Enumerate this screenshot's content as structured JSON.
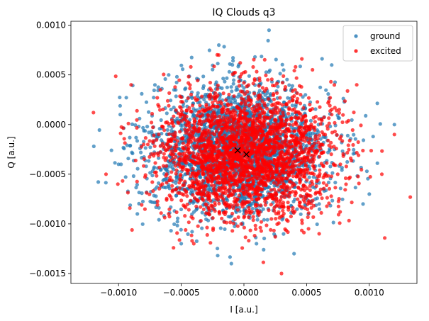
{
  "chart_data": {
    "type": "scatter",
    "title": "IQ Clouds q3",
    "xlabel": "I [a.u.]",
    "ylabel": "Q [a.u.]",
    "xlim": [
      -0.00138,
      0.00138
    ],
    "ylim": [
      -0.0016,
      0.00104
    ],
    "xticks": [
      -0.001,
      -0.0005,
      0.0,
      0.0005,
      0.001
    ],
    "xtick_labels": [
      "−0.0010",
      "−0.0005",
      "0.0000",
      "0.0005",
      "0.0010"
    ],
    "yticks": [
      -0.0015,
      -0.001,
      -0.0005,
      0.0,
      0.0005,
      0.001
    ],
    "ytick_labels": [
      "−0.0015",
      "−0.0010",
      "−0.0005",
      "0.0000",
      "0.0005",
      "0.0010"
    ],
    "grid": false,
    "legend_position": "top-right",
    "series": [
      {
        "name": "ground",
        "color": "#1f77b4",
        "marker": "circle",
        "center": [
          -4e-05,
          -0.00025
        ],
        "spread": [
          0.00035,
          0.00033
        ],
        "sample_points": [
          [
            -4e-05,
            -0.00025
          ],
          [
            0.0003,
            0.0001
          ],
          [
            -0.0004,
            -0.0006
          ],
          [
            0.0006,
            -0.0008
          ],
          [
            -0.0007,
            -0.0001
          ],
          [
            0.0008,
            -0.0003
          ],
          [
            0.0001,
            -0.0012
          ],
          [
            -0.0002,
            0.0008
          ],
          [
            0.001,
            -0.0007
          ],
          [
            -0.001,
            -0.0004
          ],
          [
            0.0012,
            0.0
          ],
          [
            -0.0001,
            -0.0014
          ],
          [
            0.0007,
            0.0006
          ],
          [
            -0.0006,
            0.0005
          ],
          [
            0.0004,
            -0.0013
          ],
          [
            -0.0005,
            -0.0012
          ],
          [
            0.00095,
            -0.0008
          ],
          [
            -0.00085,
            -0.0009
          ],
          [
            0.0002,
            0.00095
          ]
        ]
      },
      {
        "name": "excited",
        "color": "#ff0000",
        "marker": "circle",
        "center": [
          2e-05,
          -0.0003
        ],
        "spread": [
          0.00035,
          0.00032
        ],
        "sample_points": [
          [
            2e-05,
            -0.0003
          ],
          [
            -0.0003,
            0.0002
          ],
          [
            0.0005,
            -0.0007
          ],
          [
            -0.0006,
            -0.0009
          ],
          [
            0.0007,
            0.0001
          ],
          [
            -0.0008,
            -0.0002
          ],
          [
            -0.0012,
            0.00012
          ],
          [
            0.0012,
            -0.0001
          ],
          [
            -0.0011,
            -0.0005
          ],
          [
            0.0011,
            -0.0005
          ],
          [
            0.0003,
            -0.0015
          ],
          [
            -0.0002,
            0.0007
          ],
          [
            0.0009,
            0.0004
          ],
          [
            -0.0009,
            0.0004
          ],
          [
            -0.0004,
            -0.0012
          ],
          [
            0.0006,
            -0.0011
          ]
        ]
      }
    ],
    "centroids": [
      {
        "series": "ground",
        "x": -5e-05,
        "y": -0.00026,
        "marker": "x",
        "color": "#000000"
      },
      {
        "series": "excited",
        "x": 2e-05,
        "y": -0.0003,
        "marker": "x",
        "color": "#000000"
      }
    ]
  }
}
